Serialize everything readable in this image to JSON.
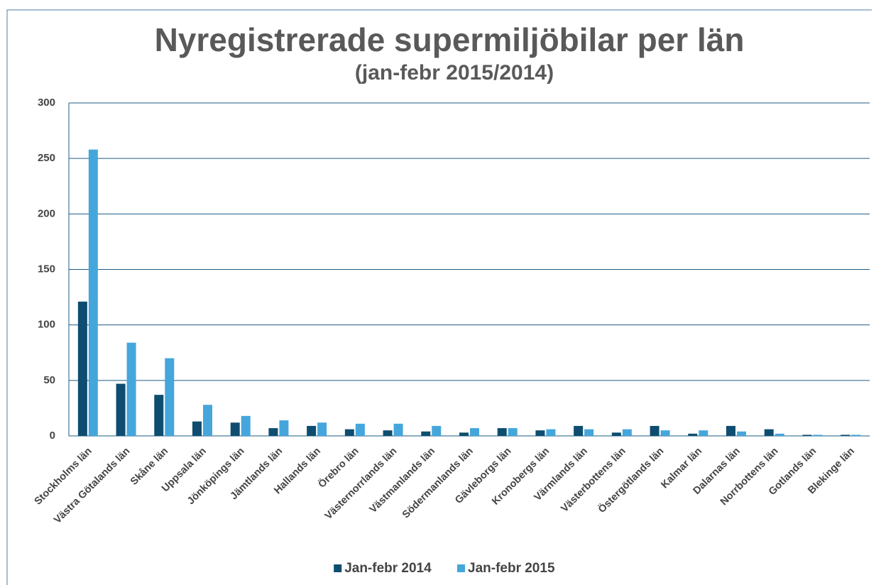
{
  "chart_data": {
    "type": "bar",
    "title": "Nyregistrerade supermiljöbilar per län",
    "subtitle": "(jan-febr 2015/2014)",
    "categories": [
      "Stockholms län",
      "Västra Götalands län",
      "Skåne län",
      "Uppsala län",
      "Jönköpings län",
      "Jämtlands län",
      "Hallands län",
      "Örebro län",
      "Västernorrlands län",
      "Västmanlands län",
      "Södermanlands län",
      "Gävleborgs län",
      "Kronobergs län",
      "Värmlands län",
      "Västerbottens län",
      "Östergötlands län",
      "Kalmar län",
      "Dalarnas län",
      "Norrbottens län",
      "Gotlands län",
      "Blekinge län"
    ],
    "series": [
      {
        "name": "Jan-febr 2014",
        "color": "#0e4d70",
        "values": [
          121,
          47,
          37,
          13,
          12,
          7,
          9,
          6,
          5,
          4,
          3,
          7,
          5,
          9,
          3,
          9,
          2,
          9,
          6,
          1,
          1
        ]
      },
      {
        "name": "Jan-febr 2015",
        "color": "#45a6dc",
        "values": [
          258,
          84,
          70,
          28,
          18,
          14,
          12,
          11,
          11,
          9,
          7,
          7,
          6,
          6,
          6,
          5,
          5,
          4,
          2,
          1,
          1
        ]
      }
    ],
    "ylim": [
      0,
      300
    ],
    "yticks": [
      0,
      50,
      100,
      150,
      200,
      250,
      300
    ],
    "grid": true,
    "legend": "bottom"
  }
}
